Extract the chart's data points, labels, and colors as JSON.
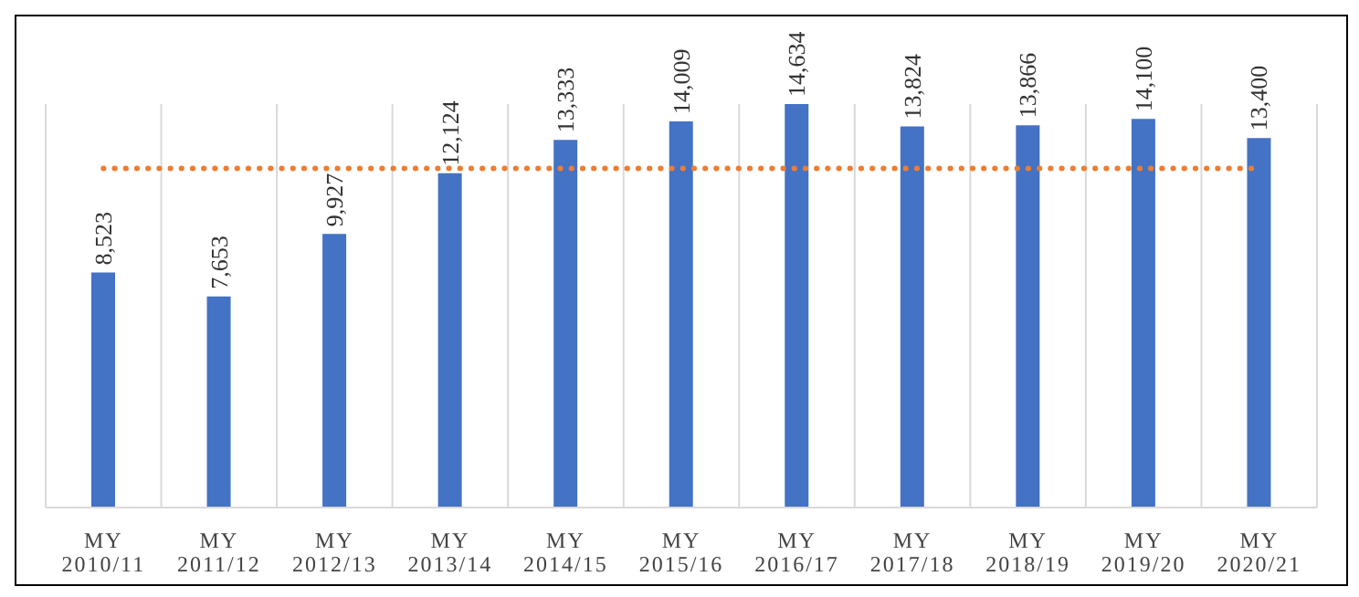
{
  "chart_data": {
    "type": "bar",
    "categories": [
      "MY 2010/11",
      "MY 2011/12",
      "MY 2012/13",
      "MY 2013/14",
      "MY 2014/15",
      "MY 2015/16",
      "MY 2016/17",
      "MY 2017/18",
      "MY 2018/19",
      "MY 2019/20",
      "MY 2020/21"
    ],
    "values": [
      8523,
      7653,
      9927,
      12124,
      13333,
      14009,
      14634,
      13824,
      13866,
      14100,
      13400
    ],
    "color": "#4472c4",
    "value_labels": [
      "8,523",
      "7,653",
      "9,927",
      "12,124",
      "13,333",
      "14,009",
      "14,634",
      "13,824",
      "13,866",
      "14,100",
      "13,400"
    ],
    "grid": "x",
    "ref_lines": [
      {
        "axis": "y",
        "value": 12300,
        "color": "#ed7d31",
        "line_style": "dotted"
      }
    ]
  }
}
